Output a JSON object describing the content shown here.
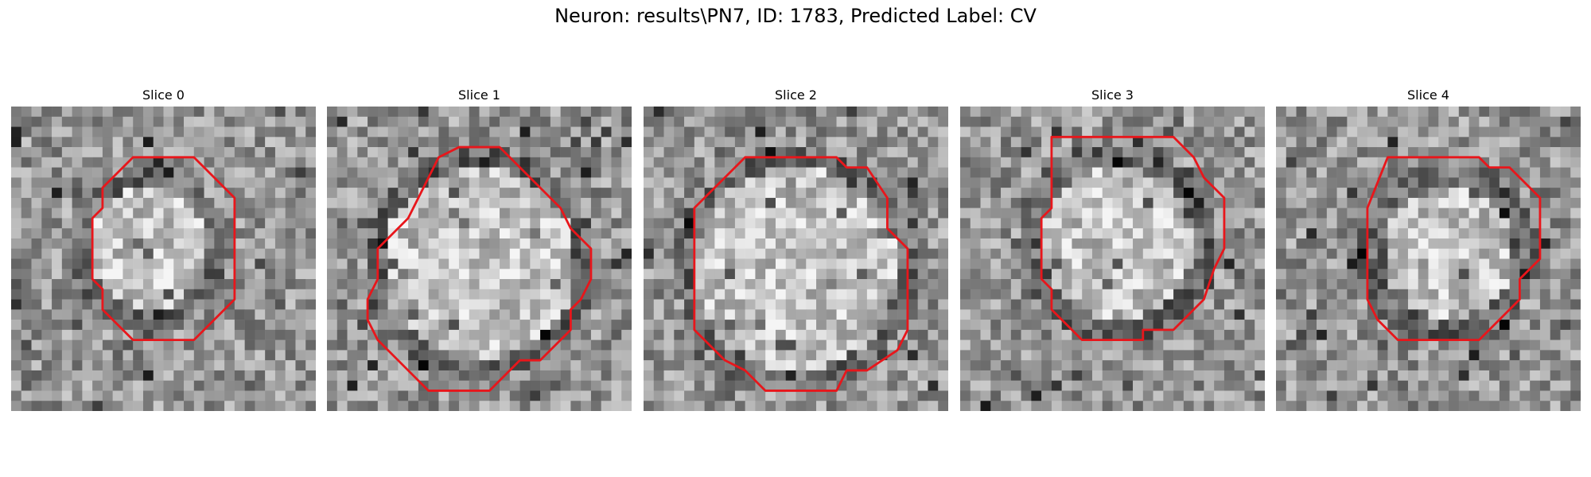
{
  "figure": {
    "title": "Neuron: results\\PN7, ID: 1783, Predicted Label: CV"
  },
  "panels": [
    {
      "title": "Slice 0"
    },
    {
      "title": "Slice 1"
    },
    {
      "title": "Slice 2"
    },
    {
      "title": "Slice 3"
    },
    {
      "title": "Slice 4"
    }
  ],
  "colors": {
    "contour": "#e8161b",
    "background": "#ffffff"
  },
  "image": {
    "grid_size": 30,
    "colormap": "grayscale",
    "contours_grid": [
      [
        [
          12,
          5
        ],
        [
          18,
          5
        ],
        [
          20,
          7
        ],
        [
          22,
          9
        ],
        [
          22,
          19
        ],
        [
          20,
          21
        ],
        [
          18,
          23
        ],
        [
          12,
          23
        ],
        [
          10,
          21
        ],
        [
          9,
          20
        ],
        [
          9,
          18
        ],
        [
          8,
          17
        ],
        [
          8,
          11
        ],
        [
          9,
          10
        ],
        [
          9,
          8
        ],
        [
          10,
          7
        ]
      ],
      [
        [
          11,
          5
        ],
        [
          13,
          4
        ],
        [
          17,
          4
        ],
        [
          20,
          7
        ],
        [
          23,
          10
        ],
        [
          24,
          12
        ],
        [
          26,
          14
        ],
        [
          26,
          17
        ],
        [
          25,
          19
        ],
        [
          24,
          20
        ],
        [
          24,
          22
        ],
        [
          21,
          25
        ],
        [
          19,
          25
        ],
        [
          16,
          28
        ],
        [
          10,
          28
        ],
        [
          8,
          26
        ],
        [
          5,
          23
        ],
        [
          4,
          21
        ],
        [
          4,
          19
        ],
        [
          5,
          17
        ],
        [
          5,
          14
        ],
        [
          8,
          11
        ]
      ],
      [
        [
          10,
          5
        ],
        [
          19,
          5
        ],
        [
          20,
          6
        ],
        [
          22,
          6
        ],
        [
          24,
          9
        ],
        [
          24,
          12
        ],
        [
          26,
          14
        ],
        [
          26,
          22
        ],
        [
          25,
          24
        ],
        [
          22,
          26
        ],
        [
          20,
          26
        ],
        [
          19,
          28
        ],
        [
          12,
          28
        ],
        [
          10,
          26
        ],
        [
          8,
          25
        ],
        [
          5,
          22
        ],
        [
          5,
          10
        ]
      ],
      [
        [
          9,
          3
        ],
        [
          21,
          3
        ],
        [
          23,
          5
        ],
        [
          24,
          7
        ],
        [
          26,
          9
        ],
        [
          26,
          14
        ],
        [
          25,
          16
        ],
        [
          24,
          19
        ],
        [
          22,
          21
        ],
        [
          21,
          22
        ],
        [
          18,
          22
        ],
        [
          18,
          23
        ],
        [
          12,
          23
        ],
        [
          10,
          21
        ],
        [
          9,
          20
        ],
        [
          9,
          18
        ],
        [
          8,
          17
        ],
        [
          8,
          11
        ],
        [
          9,
          10
        ],
        [
          9,
          8
        ]
      ],
      [
        [
          11,
          5
        ],
        [
          20,
          5
        ],
        [
          21,
          6
        ],
        [
          23,
          6
        ],
        [
          25,
          8
        ],
        [
          26,
          9
        ],
        [
          26,
          15
        ],
        [
          24,
          17
        ],
        [
          24,
          19
        ],
        [
          22,
          21
        ],
        [
          20,
          23
        ],
        [
          12,
          23
        ],
        [
          10,
          21
        ],
        [
          9,
          19
        ],
        [
          9,
          10
        ]
      ]
    ]
  }
}
